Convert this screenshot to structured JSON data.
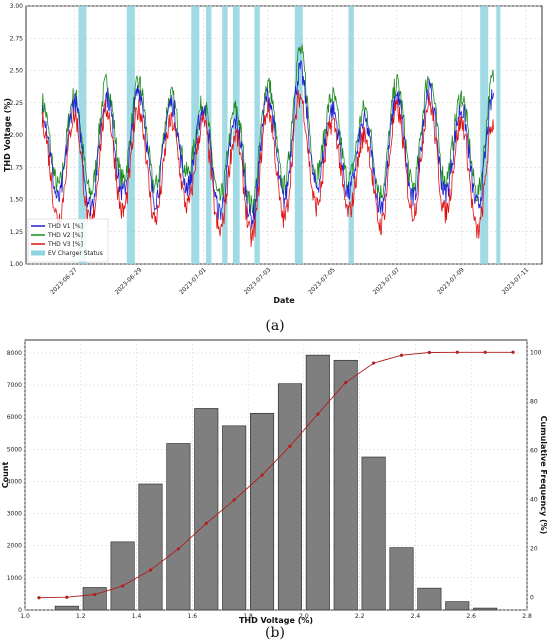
{
  "panels": {
    "a": "(a)",
    "b": "(b)"
  },
  "chart_data": [
    {
      "type": "line",
      "xlabel": "Date",
      "ylabel": "THD Voltage (%)",
      "ylim": [
        1.0,
        3.0
      ],
      "yticks": [
        "1.00",
        "1.25",
        "1.50",
        "1.75",
        "2.00",
        "2.25",
        "2.50",
        "2.75",
        "3.00"
      ],
      "xlim": [
        "2023-06-25T12:00",
        "2023-07-11T12:00"
      ],
      "xticks": [
        "2023-06-27",
        "2023-06-29",
        "2023-07-01",
        "2023-07-03",
        "2023-07-05",
        "2023-07-07",
        "2023-07-09",
        "2023-07-11"
      ],
      "grid": true,
      "legend_position": "bottom-left",
      "series": [
        {
          "name": "THD V1 [%]",
          "color": "#1f1fd6",
          "times": [
            "2023-06-26T00:00",
            "2023-06-26T12:00",
            "2023-06-27T00:00",
            "2023-06-27T12:00",
            "2023-06-28T00:00",
            "2023-06-28T12:00",
            "2023-06-29T00:00",
            "2023-06-29T12:00",
            "2023-06-30T00:00",
            "2023-06-30T12:00",
            "2023-07-01T00:00",
            "2023-07-01T12:00",
            "2023-07-02T00:00",
            "2023-07-02T12:00",
            "2023-07-03T00:00",
            "2023-07-03T12:00",
            "2023-07-04T00:00",
            "2023-07-04T12:00",
            "2023-07-05T00:00",
            "2023-07-05T12:00",
            "2023-07-06T00:00",
            "2023-07-06T12:00",
            "2023-07-07T00:00",
            "2023-07-07T12:00",
            "2023-07-08T00:00",
            "2023-07-08T12:00",
            "2023-07-09T00:00",
            "2023-07-09T12:00",
            "2023-07-10T00:00"
          ],
          "values": [
            2.2,
            1.5,
            2.25,
            1.45,
            2.3,
            1.55,
            2.35,
            1.5,
            2.25,
            1.6,
            2.2,
            1.4,
            2.1,
            1.35,
            2.3,
            1.5,
            2.5,
            1.6,
            2.2,
            1.55,
            2.1,
            1.45,
            2.3,
            1.5,
            2.35,
            1.55,
            2.2,
            1.45,
            2.3
          ]
        },
        {
          "name": "THD V2 [%]",
          "color": "#1a8a1a",
          "times": [
            "2023-06-26T00:00",
            "2023-06-26T12:00",
            "2023-06-27T00:00",
            "2023-06-27T12:00",
            "2023-06-28T00:00",
            "2023-06-28T12:00",
            "2023-06-29T00:00",
            "2023-06-29T12:00",
            "2023-06-30T00:00",
            "2023-06-30T12:00",
            "2023-07-01T00:00",
            "2023-07-01T12:00",
            "2023-07-02T00:00",
            "2023-07-02T12:00",
            "2023-07-03T00:00",
            "2023-07-03T12:00",
            "2023-07-04T00:00",
            "2023-07-04T12:00",
            "2023-07-05T00:00",
            "2023-07-05T12:00",
            "2023-07-06T00:00",
            "2023-07-06T12:00",
            "2023-07-07T00:00",
            "2023-07-07T12:00",
            "2023-07-08T00:00",
            "2023-07-08T12:00",
            "2023-07-09T00:00",
            "2023-07-09T12:00",
            "2023-07-10T00:00"
          ],
          "values": [
            2.25,
            1.6,
            2.3,
            1.55,
            2.4,
            1.65,
            2.4,
            1.6,
            2.3,
            1.7,
            2.25,
            1.5,
            2.2,
            1.45,
            2.4,
            1.6,
            2.65,
            1.7,
            2.3,
            1.65,
            2.2,
            1.55,
            2.4,
            1.6,
            2.45,
            1.65,
            2.3,
            1.55,
            2.45
          ]
        },
        {
          "name": "THD V3 [%]",
          "color": "#e01010",
          "times": [
            "2023-06-26T00:00",
            "2023-06-26T12:00",
            "2023-06-27T00:00",
            "2023-06-27T12:00",
            "2023-06-28T00:00",
            "2023-06-28T12:00",
            "2023-06-29T00:00",
            "2023-06-29T12:00",
            "2023-06-30T00:00",
            "2023-06-30T12:00",
            "2023-07-01T00:00",
            "2023-07-01T12:00",
            "2023-07-02T00:00",
            "2023-07-02T12:00",
            "2023-07-03T00:00",
            "2023-07-03T12:00",
            "2023-07-04T00:00",
            "2023-07-04T12:00",
            "2023-07-05T00:00",
            "2023-07-05T12:00",
            "2023-07-06T00:00",
            "2023-07-06T12:00",
            "2023-07-07T00:00",
            "2023-07-07T12:00",
            "2023-07-08T00:00",
            "2023-07-08T12:00",
            "2023-07-09T00:00",
            "2023-07-09T12:00",
            "2023-07-10T00:00"
          ],
          "values": [
            2.1,
            1.35,
            2.15,
            1.3,
            2.2,
            1.4,
            2.2,
            1.35,
            2.1,
            1.45,
            2.1,
            1.25,
            2.0,
            1.2,
            2.2,
            1.35,
            2.3,
            1.45,
            2.1,
            1.4,
            2.0,
            1.3,
            2.2,
            1.4,
            2.25,
            1.4,
            2.1,
            1.25,
            2.1
          ]
        }
      ],
      "highlight": {
        "name": "EV Charger Status",
        "color": "#8fd3e0",
        "ranges": [
          [
            "2023-06-27T03:00",
            "2023-06-27T09:00"
          ],
          [
            "2023-06-28T15:00",
            "2023-06-28T21:00"
          ],
          [
            "2023-06-30T15:00",
            "2023-06-30T21:00"
          ],
          [
            "2023-07-01T02:00",
            "2023-07-01T06:00"
          ],
          [
            "2023-07-01T14:00",
            "2023-07-01T18:00"
          ],
          [
            "2023-07-01T22:00",
            "2023-07-02T03:00"
          ],
          [
            "2023-07-02T14:00",
            "2023-07-02T18:00"
          ],
          [
            "2023-07-03T20:00",
            "2023-07-04T02:00"
          ],
          [
            "2023-07-05T12:00",
            "2023-07-05T16:00"
          ],
          [
            "2023-07-09T14:00",
            "2023-07-09T20:00"
          ],
          [
            "2023-07-10T02:00",
            "2023-07-10T05:00"
          ]
        ]
      }
    },
    {
      "type": "bar",
      "xlabel": "THD Voltage (%)",
      "ylabel": "Count",
      "ylabel_right": "Cumulative Frequency (%)",
      "xlim": [
        1.0,
        2.8
      ],
      "xticks": [
        "1.0",
        "1.2",
        "1.4",
        "1.6",
        "1.8",
        "2.0",
        "2.2",
        "2.4",
        "2.6",
        "2.8"
      ],
      "ylim": [
        0,
        8400
      ],
      "yticks": [
        "0",
        "1000",
        "2000",
        "3000",
        "4000",
        "5000",
        "6000",
        "7000",
        "8000"
      ],
      "ylim_right": [
        -5,
        105
      ],
      "yticks_right": [
        "0",
        "20",
        "40",
        "60",
        "80",
        "100"
      ],
      "bin_width": 0.1,
      "bin_centers": [
        1.15,
        1.25,
        1.35,
        1.45,
        1.55,
        1.65,
        1.75,
        1.85,
        1.95,
        2.05,
        2.15,
        2.25,
        2.35,
        2.45,
        2.55,
        2.65
      ],
      "counts": [
        120,
        700,
        2120,
        3920,
        5180,
        6270,
        5730,
        6120,
        7040,
        7930,
        7770,
        4760,
        1940,
        680,
        260,
        60
      ],
      "bar_color": "#7f7f7f",
      "cumulative": {
        "color": "#b02020",
        "x": [
          1.05,
          1.15,
          1.25,
          1.35,
          1.45,
          1.55,
          1.65,
          1.75,
          1.85,
          1.95,
          2.05,
          2.15,
          2.25,
          2.35,
          2.45,
          2.55,
          2.65,
          2.75
        ],
        "values": [
          0.0,
          0.2,
          1.3,
          4.8,
          11.3,
          19.9,
          30.3,
          39.8,
          50.0,
          61.7,
          74.8,
          87.7,
          95.6,
          98.8,
          99.9,
          100.0,
          100.0,
          100.0
        ]
      },
      "grid": true
    }
  ]
}
